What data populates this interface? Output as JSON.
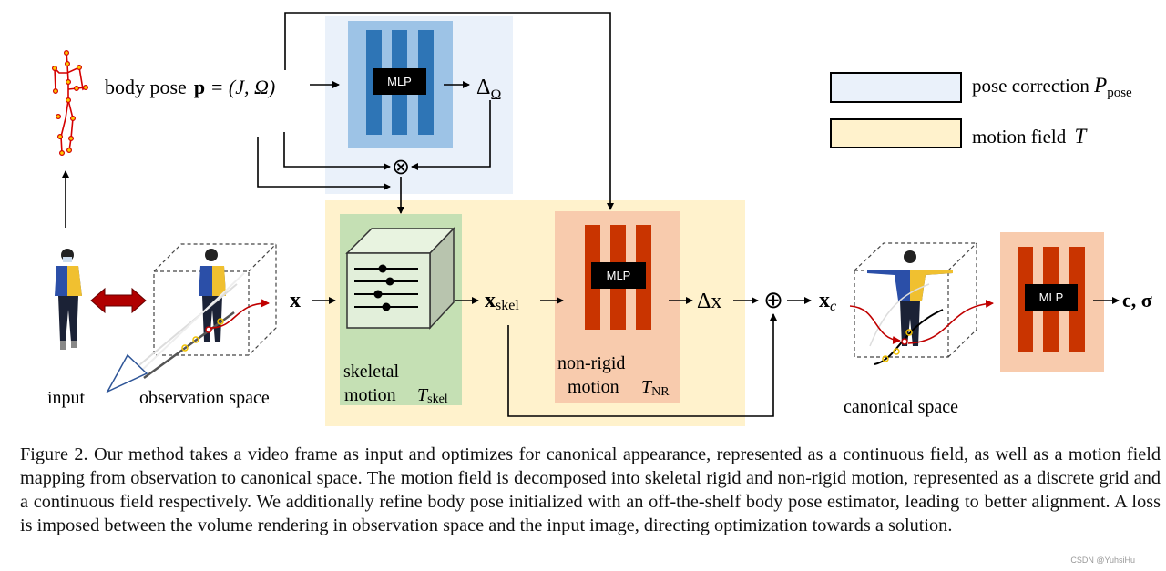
{
  "figure": {
    "body_pose_label": "body pose",
    "body_pose_eq_bold": "p",
    "body_pose_eq_rest": " = (J, Ω)",
    "mlp_label": "MLP",
    "delta_omega": "Δ",
    "delta_omega_sub": "Ω",
    "otimes": "⊗",
    "oplus": "⊕",
    "x": "x",
    "x_skel": "x",
    "x_skel_sub": "skel",
    "delta_x": "Δx",
    "x_c": "x",
    "x_c_sub": "c",
    "output": "c, σ",
    "skeletal_line1": "skeletal",
    "skeletal_line2": "motion",
    "T_skel": "T",
    "T_skel_sub": "skel",
    "nonrigid_line1": "non-rigid",
    "nonrigid_line2": "motion",
    "T_NR": "T",
    "T_NR_sub": "NR",
    "input_label": "input",
    "observation_label": "observation space",
    "canonical_label": "canonical space",
    "legend": [
      {
        "label": "pose correction ",
        "math": "P",
        "sub": "pose",
        "color": "#eaf1fa"
      },
      {
        "label": "motion field ",
        "math": "T",
        "sub": "",
        "color": "#fff2cc"
      }
    ],
    "colors": {
      "pose_correction_bg": "#eaf1fa",
      "motion_field_bg": "#fff2cc",
      "mlp_blue_outer": "#9dc3e6",
      "mlp_blue_bars": "#2e75b6",
      "skeletal_green": "#c5e0b4",
      "nonrigid_salmon": "#f8cbad",
      "mlp_red_bars": "#c93400",
      "skeleton_red": "#d40000"
    }
  },
  "caption": "Figure 2. Our method takes a video frame as input and optimizes for canonical appearance, represented as a continuous field, as well as a motion field mapping from observation to canonical space. The motion field is decomposed into skeletal rigid and non-rigid motion, represented as a discrete grid and a continuous field respectively. We additionally refine body pose initialized with an off-the-shelf body pose estimator, leading to better alignment. A loss is imposed between the volume rendering in observation space and the input image, directing optimization towards a solution.",
  "watermark": "CSDN @YuhsiHu"
}
